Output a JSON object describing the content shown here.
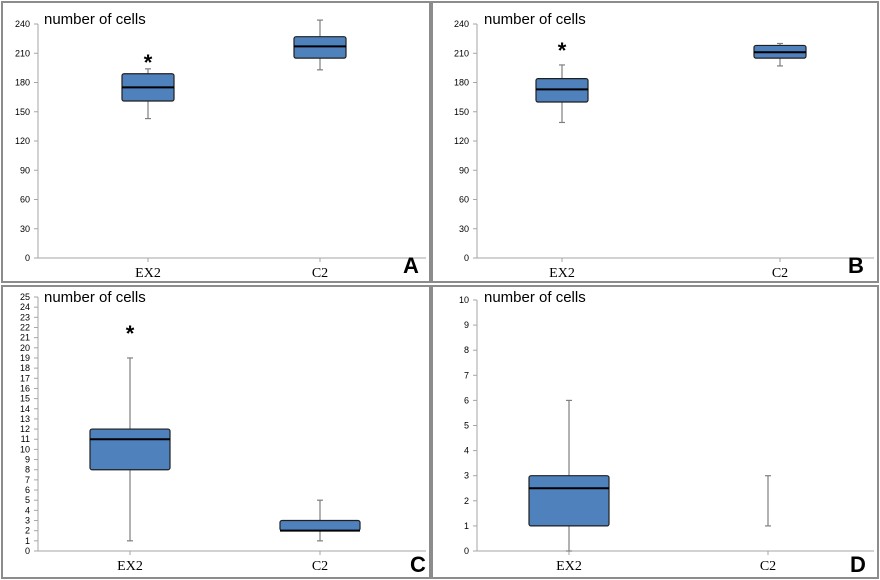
{
  "chart_data": [
    {
      "type": "box",
      "panel": "A",
      "ylabel": "number of cells",
      "ylim": [
        0,
        240
      ],
      "yticks": [
        0,
        30,
        60,
        90,
        120,
        150,
        180,
        210,
        240
      ],
      "categories": [
        "EX2",
        "C2"
      ],
      "boxes": [
        {
          "category": "EX2",
          "min": 143,
          "q1": 161,
          "median": 175,
          "q3": 189,
          "max": 194,
          "annotation": "*"
        },
        {
          "category": "C2",
          "min": 193,
          "q1": 205,
          "median": 217,
          "q3": 227,
          "max": 244,
          "annotation": ""
        }
      ]
    },
    {
      "type": "box",
      "panel": "B",
      "ylabel": "number of cells",
      "ylim": [
        0,
        240
      ],
      "yticks": [
        0,
        30,
        60,
        90,
        120,
        150,
        180,
        210,
        240
      ],
      "categories": [
        "EX2",
        "C2"
      ],
      "boxes": [
        {
          "category": "EX2",
          "min": 139,
          "q1": 160,
          "median": 173,
          "q3": 184,
          "max": 198,
          "annotation": "*"
        },
        {
          "category": "C2",
          "min": 197,
          "q1": 205,
          "median": 211,
          "q3": 218,
          "max": 220,
          "annotation": ""
        }
      ]
    },
    {
      "type": "box",
      "panel": "C",
      "ylabel": "number of cells",
      "ylim": [
        0,
        25
      ],
      "yticks": [
        0,
        1,
        2,
        3,
        4,
        5,
        6,
        7,
        8,
        9,
        10,
        11,
        12,
        13,
        14,
        15,
        16,
        17,
        18,
        19,
        20,
        21,
        22,
        23,
        24,
        25
      ],
      "categories": [
        "EX2",
        "C2"
      ],
      "boxes": [
        {
          "category": "EX2",
          "min": 1,
          "q1": 8,
          "median": 11,
          "q3": 12,
          "max": 19,
          "annotation": "*"
        },
        {
          "category": "C2",
          "min": 1,
          "q1": 2,
          "median": 2,
          "q3": 3,
          "max": 5,
          "annotation": ""
        }
      ]
    },
    {
      "type": "box",
      "panel": "D",
      "ylabel": "number of cells",
      "ylim": [
        0,
        10
      ],
      "yticks": [
        0,
        1,
        2,
        3,
        4,
        5,
        6,
        7,
        8,
        9,
        10
      ],
      "categories": [
        "EX2",
        "C2"
      ],
      "boxes": [
        {
          "category": "EX2",
          "min": 0,
          "q1": 1,
          "median": 2.5,
          "q3": 3,
          "max": 6,
          "annotation": ""
        },
        {
          "category": "C2",
          "min": 1,
          "q1": 1,
          "median": 1,
          "q3": 1,
          "max": 3,
          "annotation": ""
        }
      ]
    }
  ],
  "colors": {
    "box_fill": "#4f81bd",
    "frame": "#8c8c8c",
    "whisker": "#7f7f7f"
  }
}
